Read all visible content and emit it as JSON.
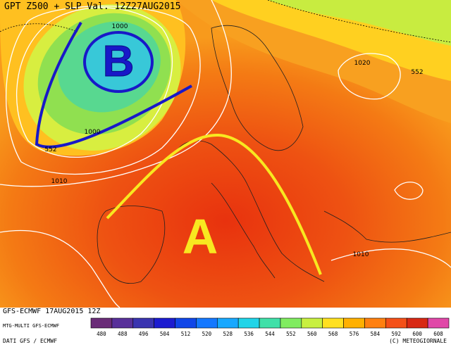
{
  "header": {
    "title": "GPT Z500 + SLP Val. 12Z27AUG2015"
  },
  "map_labels": {
    "contours": [
      "1000",
      "1000",
      "552",
      "1010",
      "1020",
      "552",
      "1010"
    ],
    "pressure_systems": [
      "B",
      "A"
    ]
  },
  "legend": {
    "labels": [
      "480",
      "488",
      "496",
      "504",
      "512",
      "520",
      "528",
      "536",
      "544",
      "552",
      "560",
      "568",
      "576",
      "584",
      "592",
      "600",
      "608"
    ],
    "colors": [
      "#6a2c78",
      "#58309a",
      "#3a34b0",
      "#1c1cd0",
      "#1046e8",
      "#1478ff",
      "#18a8ff",
      "#20d4e8",
      "#40e0a8",
      "#80ec60",
      "#c8f040",
      "#ffe020",
      "#ffb000",
      "#ff8010",
      "#f45018",
      "#d82814",
      "#e048a8"
    ]
  },
  "footer": {
    "run": "GFS-ECMWF 17AUG2015 12Z",
    "model": "MTG-MULTI GFS-ECMWF",
    "source": "DATI GFS / ECMWF",
    "credit": "(C) METEOGIORNALE"
  }
}
